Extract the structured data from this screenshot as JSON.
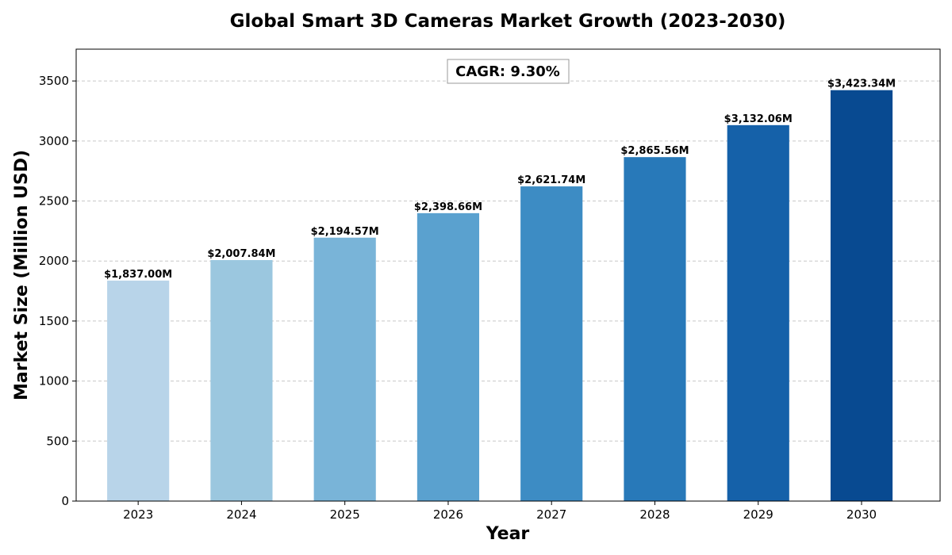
{
  "chart_data": {
    "type": "bar",
    "title": "Global Smart 3D Cameras Market Growth (2023-2030)",
    "xlabel": "Year",
    "ylabel": "Market Size (Million USD)",
    "categories": [
      "2023",
      "2024",
      "2025",
      "2026",
      "2027",
      "2028",
      "2029",
      "2030"
    ],
    "values": [
      1837.0,
      2007.84,
      2194.57,
      2398.66,
      2621.74,
      2865.56,
      3132.06,
      3423.34
    ],
    "value_labels": [
      "$1,837.00M",
      "$2,007.84M",
      "$2,194.57M",
      "$2,398.66M",
      "$2,621.74M",
      "$2,865.56M",
      "$3,132.06M",
      "$3,423.34M"
    ],
    "bar_colors": [
      "#b8d4e9",
      "#9bc7df",
      "#79b4d8",
      "#5aa1cf",
      "#3d8cc4",
      "#2879b9",
      "#1561a9",
      "#084a91"
    ],
    "ylim": [
      0,
      3765
    ],
    "yticks": [
      0,
      500,
      1000,
      1500,
      2000,
      2500,
      3000,
      3500
    ],
    "grid": "y-dashed",
    "annotation": "CAGR: 9.30%"
  }
}
